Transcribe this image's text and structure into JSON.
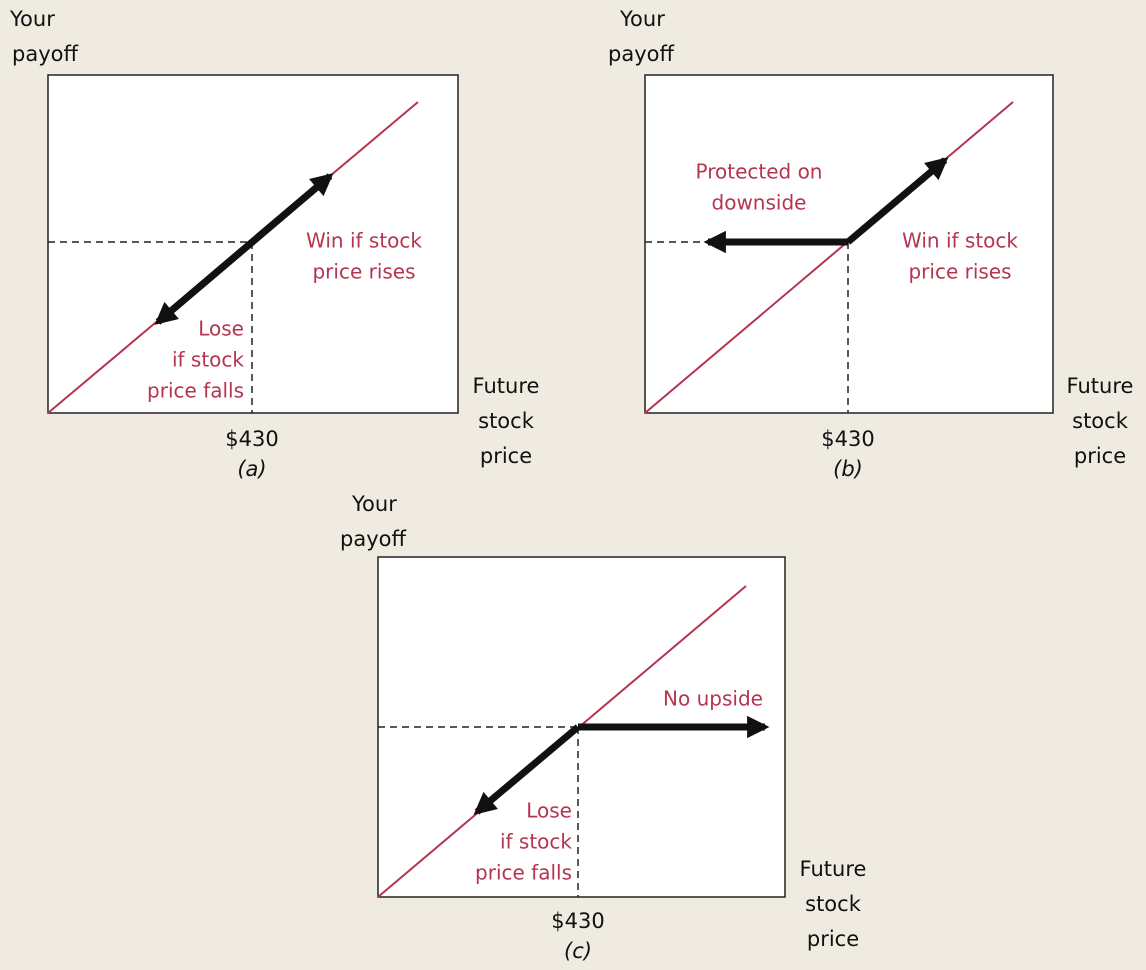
{
  "panels": [
    {
      "y_label": [
        "Your",
        "payoff"
      ],
      "x_label": [
        "Future",
        "stock",
        "price"
      ],
      "strike": "$430",
      "caption": "(a)",
      "annotations": [
        {
          "lines": [
            "Win if stock",
            "price rises"
          ]
        },
        {
          "lines": [
            "Lose",
            "if stock",
            "price falls"
          ]
        }
      ]
    },
    {
      "y_label": [
        "Your",
        "payoff"
      ],
      "x_label": [
        "Future",
        "stock",
        "price"
      ],
      "strike": "$430",
      "caption": "(b)",
      "annotations": [
        {
          "lines": [
            "Protected on",
            "downside"
          ]
        },
        {
          "lines": [
            "Win if stock",
            "price rises"
          ]
        }
      ]
    },
    {
      "y_label": [
        "Your",
        "payoff"
      ],
      "x_label": [
        "Future",
        "stock",
        "price"
      ],
      "strike": "$430",
      "caption": "(c)",
      "annotations": [
        {
          "lines": [
            "No upside"
          ]
        },
        {
          "lines": [
            "Lose",
            "if stock",
            "price falls"
          ]
        }
      ]
    }
  ]
}
